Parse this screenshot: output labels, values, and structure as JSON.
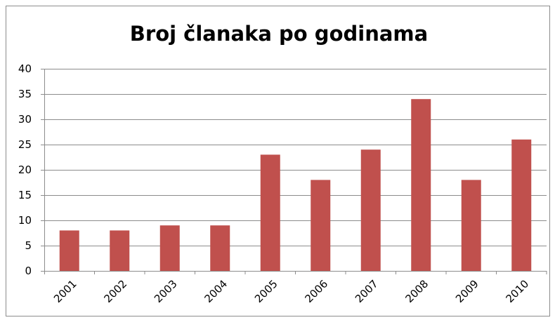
{
  "chart_data": {
    "type": "bar",
    "title": "Broj članaka po godinama",
    "categories": [
      "2001",
      "2002",
      "2003",
      "2004",
      "2005",
      "2006",
      "2007",
      "2008",
      "2009",
      "2010"
    ],
    "values": [
      8,
      8,
      9,
      9,
      23,
      18,
      24,
      34,
      18,
      26
    ],
    "color": "#c0504d",
    "ylim": [
      0,
      40
    ],
    "yticks": [
      0,
      5,
      10,
      15,
      20,
      25,
      30,
      35,
      40
    ],
    "grid": true
  }
}
